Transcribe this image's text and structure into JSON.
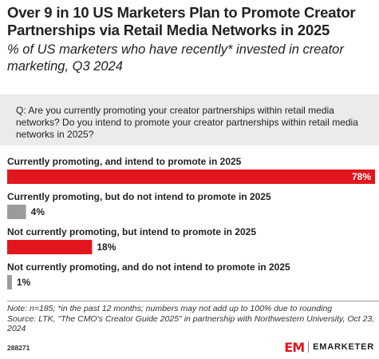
{
  "header": {
    "title": "Over 9 in 10 US Marketers Plan to Promote Creator Partnerships via Retail Media Networks in 2025",
    "subtitle": "% of US marketers who have recently* invested in creator marketing, Q3 2024"
  },
  "question": "Q: Are you currently promoting your creator partnerships within retail media networks? Do you intend to promote your creator partnerships within retail media networks in 2025?",
  "colors": {
    "highlight": "#e3161d",
    "neutral": "#9b9b9b",
    "panel": "#ebebeb"
  },
  "chart_data": {
    "type": "bar",
    "orientation": "horizontal",
    "unit": "%",
    "xlim": [
      0,
      78
    ],
    "grid": false,
    "categories": [
      "Currently promoting, and intend to promote in 2025",
      "Currently promoting, but do not intend to promote in 2025",
      "Not currently promoting, but intend to promote in 2025",
      "Not currently promoting, and do not intend to promote in 2025"
    ],
    "values": [
      78,
      4,
      18,
      1
    ],
    "value_labels": [
      "78%",
      "4%",
      "18%",
      "1%"
    ],
    "bar_colors": [
      "#e3161d",
      "#9b9b9b",
      "#e3161d",
      "#9b9b9b"
    ],
    "label_inside": [
      true,
      false,
      false,
      false
    ]
  },
  "footer": {
    "note": "Note: n=185; *in the past 12 months; numbers may not add up to 100% due to rounding",
    "source": "Source: LTK, \"The CMO's Creator Guide 2025\" in partnership with Northwestern University, Oct 23, 2024",
    "chart_id": "288271",
    "logo_text": "EMARKETER",
    "logo_mark": "EM"
  }
}
